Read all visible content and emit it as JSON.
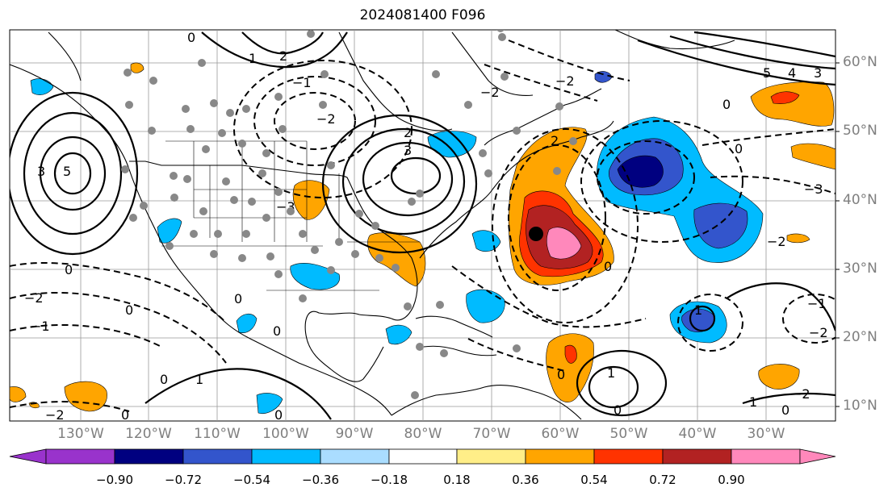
{
  "title": "2024081400 F096",
  "lat_labels": [
    "60°N",
    "50°N",
    "40°N",
    "30°N",
    "20°N",
    "10°N"
  ],
  "lon_labels": [
    "130°W",
    "120°W",
    "110°W",
    "100°W",
    "90°W",
    "80°W",
    "70°W",
    "60°W",
    "50°W",
    "40°W",
    "30°W"
  ],
  "colorbar": {
    "ticks": [
      "−0.90",
      "−0.72",
      "−0.54",
      "−0.36",
      "−0.18",
      "0.18",
      "0.36",
      "0.54",
      "0.72",
      "0.90"
    ],
    "colors": [
      "#9933cc",
      "#000080",
      "#3355cc",
      "#00bbff",
      "#aaddff",
      "#ffffff",
      "#ffee88",
      "#ffa500",
      "#ff3300",
      "#b22222",
      "#ff88bb"
    ]
  },
  "contour_labels": [
    "0",
    "1",
    "2",
    "3",
    "4",
    "5",
    "−1",
    "−2",
    "−3"
  ]
}
